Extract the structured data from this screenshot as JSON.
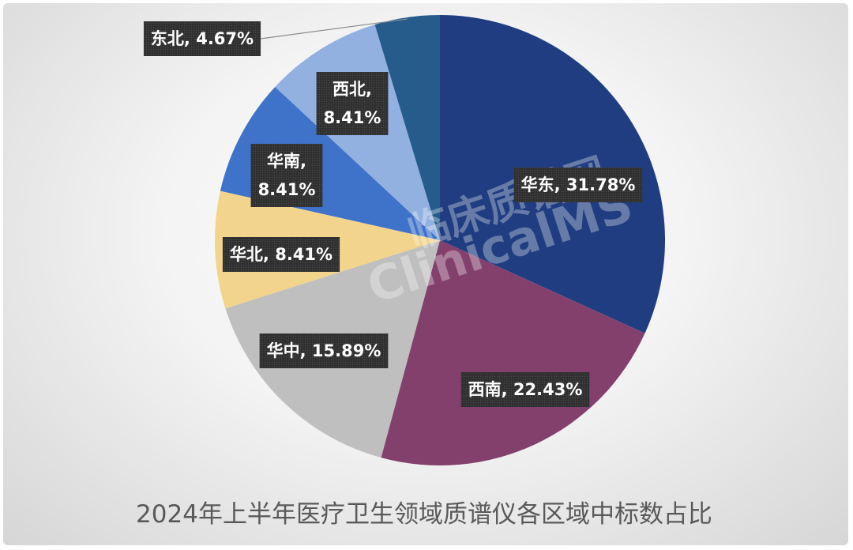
{
  "chart_data": {
    "type": "pie",
    "title": "2024年上半年医疗卫生领域质谱仪各区域中标数占比",
    "start": "12 o'clock",
    "direction": "clockwise",
    "slices": [
      {
        "name": "华东",
        "value": 31.78,
        "label": "华东, 31.78%",
        "color": "#1f3d80"
      },
      {
        "name": "西南",
        "value": 22.43,
        "label": "西南, 22.43%",
        "color": "#84406d"
      },
      {
        "name": "华中",
        "value": 15.89,
        "label": "华中, 15.89%",
        "color": "#bfbfbf"
      },
      {
        "name": "华北",
        "value": 8.41,
        "label": "华北, 8.41%",
        "color": "#f2d48d"
      },
      {
        "name": "华南",
        "value": 8.41,
        "label": "华南,\n8.41%",
        "color": "#3f72c9"
      },
      {
        "name": "西北",
        "value": 8.41,
        "label": "西北,\n8.41%",
        "color": "#92b0e0"
      },
      {
        "name": "东北",
        "value": 4.67,
        "label": "东北, 4.67%",
        "color": "#255c8c"
      }
    ],
    "legend": "none"
  },
  "watermark": {
    "line1": "临床质谱网",
    "line2": "ClinicalMS"
  }
}
